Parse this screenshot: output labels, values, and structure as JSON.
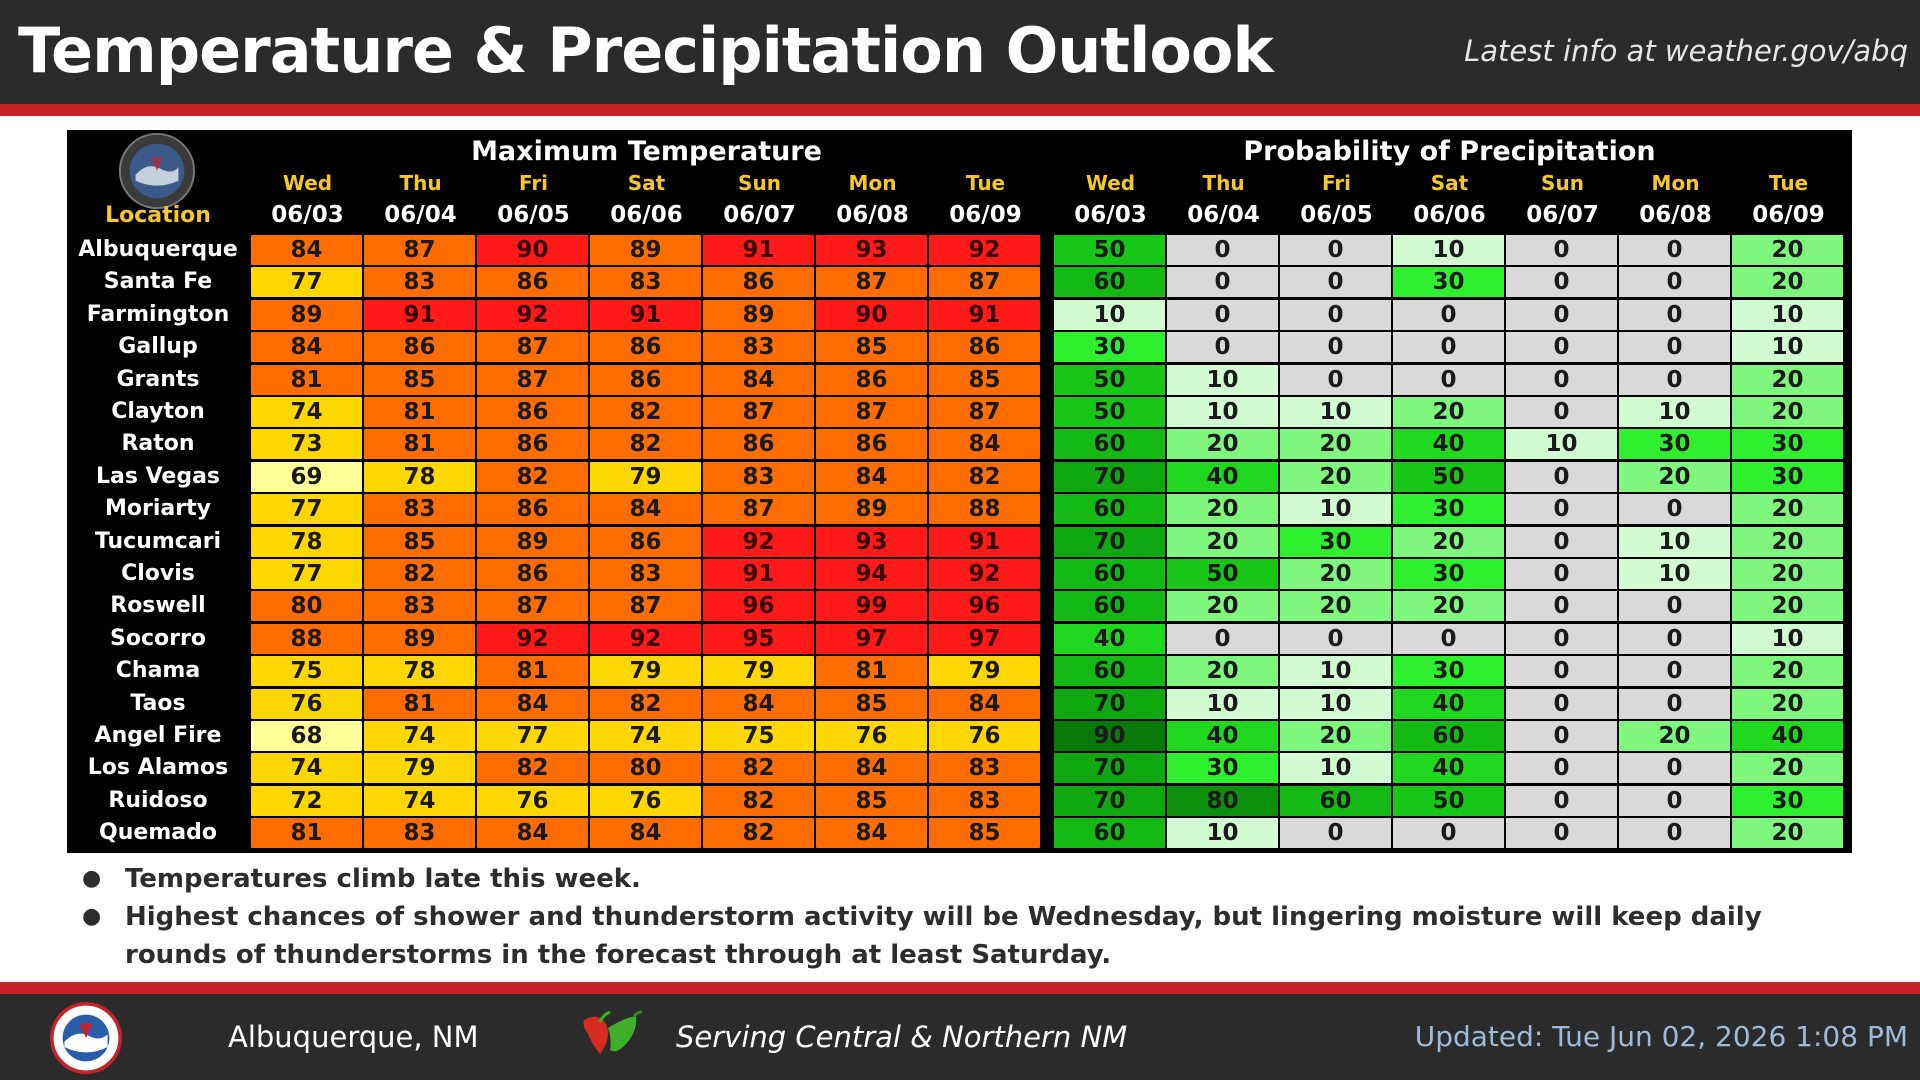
{
  "header": {
    "title": "Temperature & Precipitation Outlook",
    "link_text": "Latest info at weather.gov/abq"
  },
  "table": {
    "temp_title": "Maximum Temperature",
    "pop_title": "Probability of Precipitation",
    "location_header": "Location",
    "temp_days": [
      "Wed",
      "Thu",
      "Fri",
      "Sat",
      "Sun",
      "Mon",
      "Tue"
    ],
    "temp_dates": [
      "06/03",
      "06/04",
      "06/05",
      "06/06",
      "06/07",
      "06/08",
      "06/09"
    ],
    "pop_days": [
      "Wed",
      "Thu",
      "Fri",
      "Sat",
      "Sun",
      "Mon",
      "Tue"
    ],
    "pop_dates": [
      "06/03",
      "06/04",
      "06/05",
      "06/06",
      "06/07",
      "06/08",
      "06/09"
    ],
    "rows": [
      {
        "location": "Albuquerque",
        "temps": [
          84,
          87,
          90,
          89,
          91,
          93,
          92
        ],
        "pops": [
          50,
          0,
          0,
          10,
          0,
          0,
          20
        ]
      },
      {
        "location": "Santa Fe",
        "temps": [
          77,
          83,
          86,
          83,
          86,
          87,
          87
        ],
        "pops": [
          60,
          0,
          0,
          30,
          0,
          0,
          20
        ]
      },
      {
        "location": "Farmington",
        "temps": [
          89,
          91,
          92,
          91,
          89,
          90,
          91
        ],
        "pops": [
          10,
          0,
          0,
          0,
          0,
          0,
          10
        ]
      },
      {
        "location": "Gallup",
        "temps": [
          84,
          86,
          87,
          86,
          83,
          85,
          86
        ],
        "pops": [
          30,
          0,
          0,
          0,
          0,
          0,
          10
        ]
      },
      {
        "location": "Grants",
        "temps": [
          81,
          85,
          87,
          86,
          84,
          86,
          85
        ],
        "pops": [
          50,
          10,
          0,
          0,
          0,
          0,
          20
        ]
      },
      {
        "location": "Clayton",
        "temps": [
          74,
          81,
          86,
          82,
          87,
          87,
          87
        ],
        "pops": [
          50,
          10,
          10,
          20,
          0,
          10,
          20
        ]
      },
      {
        "location": "Raton",
        "temps": [
          73,
          81,
          86,
          82,
          86,
          86,
          84
        ],
        "pops": [
          60,
          20,
          20,
          40,
          10,
          30,
          30
        ]
      },
      {
        "location": "Las Vegas",
        "temps": [
          69,
          78,
          82,
          79,
          83,
          84,
          82
        ],
        "pops": [
          70,
          40,
          20,
          50,
          0,
          20,
          30
        ]
      },
      {
        "location": "Moriarty",
        "temps": [
          77,
          83,
          86,
          84,
          87,
          89,
          88
        ],
        "pops": [
          60,
          20,
          10,
          30,
          0,
          0,
          20
        ]
      },
      {
        "location": "Tucumcari",
        "temps": [
          78,
          85,
          89,
          86,
          92,
          93,
          91
        ],
        "pops": [
          70,
          20,
          30,
          20,
          0,
          10,
          20
        ]
      },
      {
        "location": "Clovis",
        "temps": [
          77,
          82,
          86,
          83,
          91,
          94,
          92
        ],
        "pops": [
          60,
          50,
          20,
          30,
          0,
          10,
          20
        ]
      },
      {
        "location": "Roswell",
        "temps": [
          80,
          83,
          87,
          87,
          96,
          99,
          96
        ],
        "pops": [
          60,
          20,
          20,
          20,
          0,
          0,
          20
        ]
      },
      {
        "location": "Socorro",
        "temps": [
          88,
          89,
          92,
          92,
          95,
          97,
          97
        ],
        "pops": [
          40,
          0,
          0,
          0,
          0,
          0,
          10
        ]
      },
      {
        "location": "Chama",
        "temps": [
          75,
          78,
          81,
          79,
          79,
          81,
          79
        ],
        "pops": [
          60,
          20,
          10,
          30,
          0,
          0,
          20
        ]
      },
      {
        "location": "Taos",
        "temps": [
          76,
          81,
          84,
          82,
          84,
          85,
          84
        ],
        "pops": [
          70,
          10,
          10,
          40,
          0,
          0,
          20
        ]
      },
      {
        "location": "Angel Fire",
        "temps": [
          68,
          74,
          77,
          74,
          75,
          76,
          76
        ],
        "pops": [
          90,
          40,
          20,
          60,
          0,
          20,
          40
        ]
      },
      {
        "location": "Los Alamos",
        "temps": [
          74,
          79,
          82,
          80,
          82,
          84,
          83
        ],
        "pops": [
          70,
          30,
          10,
          40,
          0,
          0,
          20
        ]
      },
      {
        "location": "Ruidoso",
        "temps": [
          72,
          74,
          76,
          76,
          82,
          85,
          83
        ],
        "pops": [
          70,
          80,
          60,
          50,
          0,
          0,
          30
        ]
      },
      {
        "location": "Quemado",
        "temps": [
          81,
          83,
          84,
          84,
          82,
          84,
          85
        ],
        "pops": [
          60,
          10,
          0,
          0,
          0,
          0,
          20
        ]
      }
    ]
  },
  "colors": {
    "temp_scale": {
      "68": "#ffff99",
      "69": "#ffff99",
      "70": "#ffd700",
      "79": "#ffd700",
      "80": "#ff6d00",
      "89": "#ff6d00",
      "90": "#ff1a1a"
    },
    "pop_scale": {
      "0": "#d9d9d9",
      "10": "#d2fbd2",
      "20": "#7ff77f",
      "30": "#2ef02e",
      "40": "#20d820",
      "50": "#18c618",
      "60": "#14b914",
      "70": "#10a810",
      "80": "#0c900c",
      "90": "#087808"
    },
    "header_bg": "#2b2b2c",
    "accent_red": "#c5222a"
  },
  "bullets": [
    "Temperatures climb late this week.",
    "Highest chances of shower and thunderstorm activity will be Wednesday, but lingering moisture will keep daily rounds of thunderstorms in the forecast through at least Saturday."
  ],
  "footer": {
    "city": "Albuquerque, NM",
    "serving": "Serving Central & Northern NM",
    "updated": "Updated: Tue Jun 02, 2026 1:08 PM",
    "logo_icon": "nws-logo-icon",
    "chile_icon": "chile-pepper-icon"
  }
}
